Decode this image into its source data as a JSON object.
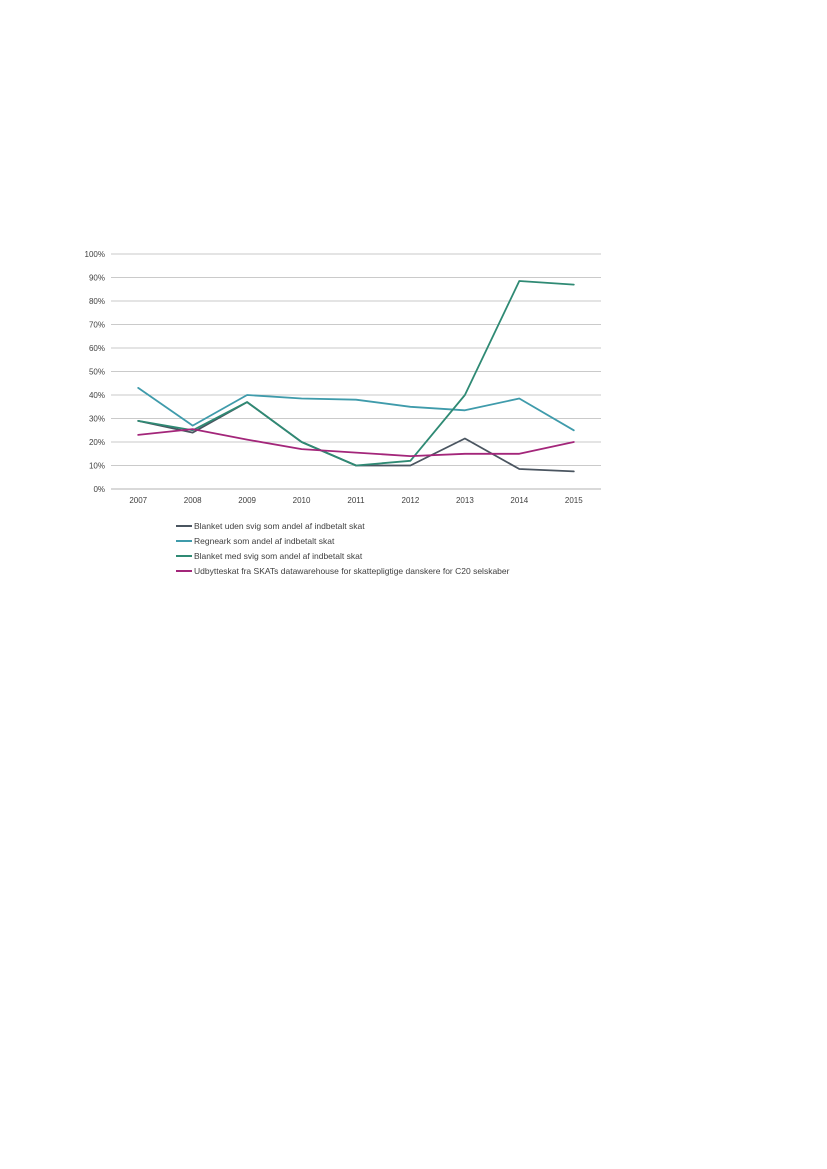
{
  "chart_data": {
    "type": "line",
    "title": "",
    "xlabel": "",
    "ylabel": "",
    "x": [
      "2007",
      "2008",
      "2009",
      "2010",
      "2011",
      "2012",
      "2013",
      "2014",
      "2015"
    ],
    "ylim": [
      0,
      1
    ],
    "y_ticks": [
      "0%",
      "10%",
      "20%",
      "30%",
      "40%",
      "50%",
      "60%",
      "70%",
      "80%",
      "90%",
      "100%"
    ],
    "grid": "horizontal",
    "legend_position": "bottom",
    "series": [
      {
        "name": "Blanket uden svig som andel af indbetalt skat",
        "color": "#4a5560",
        "values": [
          0.29,
          0.24,
          0.37,
          0.2,
          0.1,
          0.1,
          0.215,
          0.085,
          0.075
        ]
      },
      {
        "name": "Regneark som andel af indbetalt skat",
        "color": "#3f9bab",
        "values": [
          0.43,
          0.27,
          0.4,
          0.385,
          0.38,
          0.35,
          0.335,
          0.385,
          0.25
        ]
      },
      {
        "name": "Blanket med svig som andel af indbetalt skat",
        "color": "#2f8a74",
        "values": [
          0.29,
          0.25,
          0.37,
          0.2,
          0.1,
          0.12,
          0.4,
          0.885,
          0.87
        ]
      },
      {
        "name": "Udbytteskat fra SKATs datawarehouse for skattepligtige danskere for C20 selskaber",
        "color": "#a3267a",
        "values": [
          0.23,
          0.255,
          0.21,
          0.17,
          0.155,
          0.14,
          0.15,
          0.15,
          0.2
        ]
      }
    ]
  }
}
